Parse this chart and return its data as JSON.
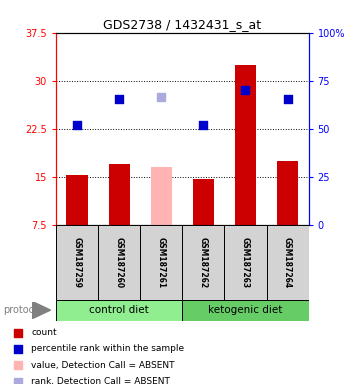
{
  "title": "GDS2738 / 1432431_s_at",
  "samples": [
    "GSM187259",
    "GSM187260",
    "GSM187261",
    "GSM187262",
    "GSM187263",
    "GSM187264"
  ],
  "bar_values": [
    15.2,
    17.0,
    16.5,
    14.7,
    32.5,
    17.5
  ],
  "bar_colors": [
    "#cc0000",
    "#cc0000",
    "#ffb3b3",
    "#cc0000",
    "#cc0000",
    "#cc0000"
  ],
  "dot_values": [
    23.0,
    27.2,
    27.5,
    23.1,
    28.5,
    27.2
  ],
  "dot_colors": [
    "#0000cc",
    "#0000cc",
    "#aaaadd",
    "#0000cc",
    "#0000cc",
    "#0000cc"
  ],
  "ylim_left": [
    7.5,
    37.5
  ],
  "ylim_right": [
    0,
    100
  ],
  "left_ticks": [
    7.5,
    15,
    22.5,
    30,
    37.5
  ],
  "right_ticks": [
    0,
    25,
    50,
    75,
    100
  ],
  "left_tick_labels": [
    "7.5",
    "15",
    "22.5",
    "30",
    "37.5"
  ],
  "right_tick_labels": [
    "0",
    "25",
    "50",
    "75",
    "100%"
  ],
  "groups": [
    {
      "label": "control diet",
      "start": 0,
      "end": 3,
      "color": "#90ee90"
    },
    {
      "label": "ketogenic diet",
      "start": 3,
      "end": 6,
      "color": "#66cc66"
    }
  ],
  "protocol_label": "protocol",
  "legend_items": [
    {
      "color": "#cc0000",
      "label": "count"
    },
    {
      "color": "#0000cc",
      "label": "percentile rank within the sample"
    },
    {
      "color": "#ffb3b3",
      "label": "value, Detection Call = ABSENT"
    },
    {
      "color": "#aaaadd",
      "label": "rank, Detection Call = ABSENT"
    }
  ],
  "bar_width": 0.5,
  "dot_size": 35
}
